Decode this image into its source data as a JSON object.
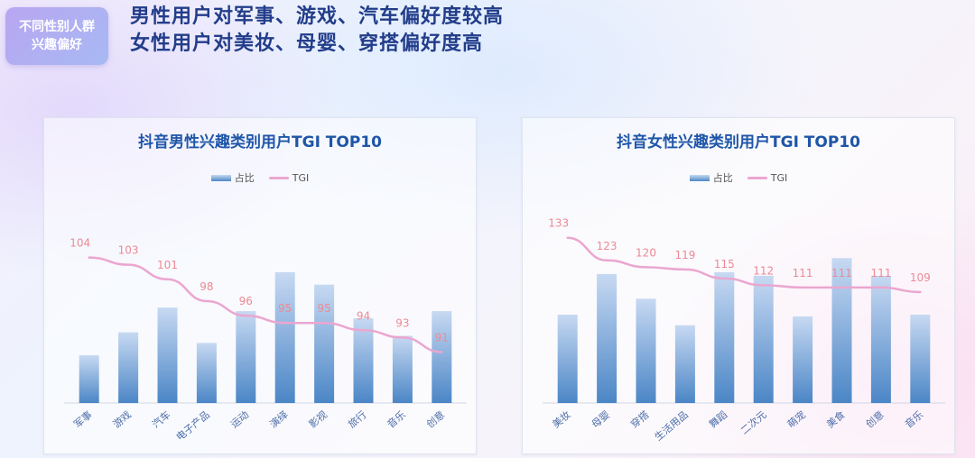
{
  "tag": {
    "line1": "不同性别人群",
    "line2": "兴趣偏好"
  },
  "headline": {
    "line1": "男性用户对军事、游戏、汽车偏好度较高",
    "line2": "女性用户对美妆、母婴、穿搭偏好度高"
  },
  "colors": {
    "bar_top": "#c7d9f2",
    "bar_bottom": "#4b86c6",
    "tgi_line": "#eba6cf",
    "tgi_label": "#ec8a94",
    "title": "#1f56a8"
  },
  "chart_data": [
    {
      "type": "bar",
      "title": "抖音男性兴趣类别用户TGI TOP10",
      "legend": {
        "bar": "占比",
        "line": "TGI",
        "position": "top"
      },
      "categories": [
        "军事",
        "游戏",
        "汽车",
        "电子产品",
        "运动",
        "演绎",
        "影视",
        "旅行",
        "音乐",
        "创意"
      ],
      "series": [
        {
          "name": "占比",
          "type": "bar",
          "values": [
            0.27,
            0.4,
            0.54,
            0.34,
            0.52,
            0.74,
            0.67,
            0.48,
            0.38,
            0.52
          ]
        },
        {
          "name": "TGI",
          "type": "line",
          "values": [
            104,
            103,
            101,
            98,
            96,
            95,
            95,
            94,
            93,
            91
          ]
        }
      ],
      "ylim": [
        0,
        1
      ],
      "tgi_range": [
        84,
        112
      ],
      "xlabel": "",
      "ylabel": "",
      "grid": false
    },
    {
      "type": "bar",
      "title": "抖音女性兴趣类别用户TGI TOP10",
      "legend": {
        "bar": "占比",
        "line": "TGI",
        "position": "top"
      },
      "categories": [
        "美妆",
        "母婴",
        "穿搭",
        "生活用品",
        "舞蹈",
        "二次元",
        "萌宠",
        "美食",
        "创意",
        "音乐"
      ],
      "series": [
        {
          "name": "占比",
          "type": "bar",
          "values": [
            0.5,
            0.73,
            0.59,
            0.44,
            0.74,
            0.72,
            0.49,
            0.82,
            0.72,
            0.5
          ]
        },
        {
          "name": "TGI",
          "type": "line",
          "values": [
            133,
            123,
            120,
            119,
            115,
            112,
            111,
            111,
            111,
            109
          ]
        }
      ],
      "ylim": [
        0,
        1
      ],
      "tgi_range": [
        60,
        150
      ],
      "xlabel": "",
      "ylabel": "",
      "grid": false
    }
  ]
}
